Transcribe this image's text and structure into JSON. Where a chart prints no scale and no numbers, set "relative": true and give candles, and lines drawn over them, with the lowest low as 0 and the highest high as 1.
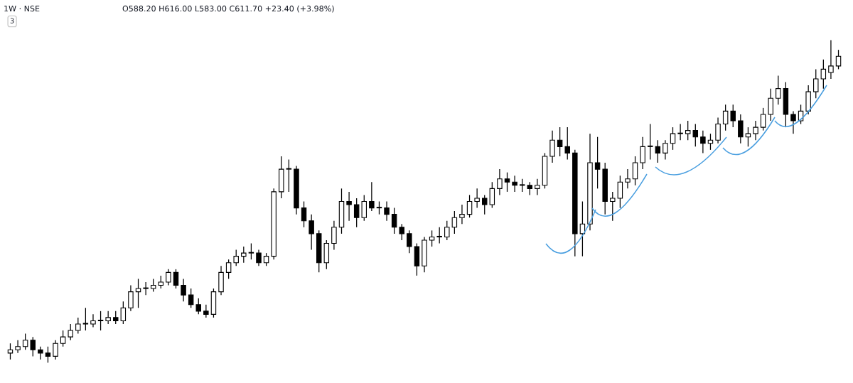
{
  "chart_data": {
    "type": "candlestick",
    "title": "1W · NSE",
    "relative": true,
    "annotations": [
      "O588.20 H616.00 L583.00 C611.70 +23.40 (+3.98%)",
      "3"
    ],
    "categories": [
      null,
      null,
      null,
      null,
      null,
      null,
      null,
      null,
      null,
      null,
      null,
      null,
      null,
      null,
      null,
      null,
      null,
      null,
      null,
      null,
      null,
      null,
      null,
      null,
      null,
      null,
      null,
      null,
      null,
      null,
      null,
      null,
      null,
      null,
      null,
      null,
      null,
      null,
      null,
      null,
      null,
      null,
      null,
      null,
      null,
      null,
      null,
      null,
      null,
      null,
      null,
      null,
      null,
      null,
      null,
      null,
      null,
      null,
      null,
      null,
      null,
      null,
      null,
      null,
      null,
      null,
      null,
      null,
      null,
      null,
      null,
      null,
      null,
      null,
      null,
      null,
      null,
      null,
      null,
      null,
      null,
      null,
      null,
      null,
      null,
      null,
      null,
      null,
      null,
      null,
      null,
      null,
      null,
      null,
      null,
      null,
      null,
      null,
      null,
      null,
      null,
      null,
      null,
      null,
      null,
      null,
      null,
      null,
      null,
      null,
      null
    ],
    "ohlc": [
      [
        0.03,
        0.06,
        0.01,
        0.04
      ],
      [
        0.04,
        0.07,
        0.03,
        0.05
      ],
      [
        0.05,
        0.09,
        0.04,
        0.07
      ],
      [
        0.07,
        0.08,
        0.02,
        0.04
      ],
      [
        0.04,
        0.05,
        0.01,
        0.03
      ],
      [
        0.03,
        0.05,
        0,
        0.02
      ],
      [
        0.02,
        0.07,
        0.01,
        0.06
      ],
      [
        0.06,
        0.1,
        0.05,
        0.08
      ],
      [
        0.08,
        0.12,
        0.07,
        0.1
      ],
      [
        0.1,
        0.14,
        0.09,
        0.12
      ],
      [
        0.12,
        0.17,
        0.1,
        0.12
      ],
      [
        0.12,
        0.15,
        0.11,
        0.13
      ],
      [
        0.13,
        0.16,
        0.1,
        0.13
      ],
      [
        0.13,
        0.16,
        0.12,
        0.14
      ],
      [
        0.14,
        0.16,
        0.12,
        0.13
      ],
      [
        0.13,
        0.19,
        0.12,
        0.17
      ],
      [
        0.17,
        0.24,
        0.16,
        0.22
      ],
      [
        0.22,
        0.26,
        0.17,
        0.23
      ],
      [
        0.23,
        0.25,
        0.21,
        0.23
      ],
      [
        0.23,
        0.26,
        0.22,
        0.24
      ],
      [
        0.24,
        0.27,
        0.23,
        0.25
      ],
      [
        0.25,
        0.29,
        0.24,
        0.28
      ],
      [
        0.28,
        0.29,
        0.23,
        0.24
      ],
      [
        0.24,
        0.26,
        0.19,
        0.21
      ],
      [
        0.21,
        0.23,
        0.17,
        0.18
      ],
      [
        0.18,
        0.2,
        0.15,
        0.16
      ],
      [
        0.16,
        0.18,
        0.14,
        0.15
      ],
      [
        0.15,
        0.23,
        0.14,
        0.22
      ],
      [
        0.22,
        0.3,
        0.21,
        0.28
      ],
      [
        0.28,
        0.32,
        0.26,
        0.31
      ],
      [
        0.31,
        0.35,
        0.3,
        0.33
      ],
      [
        0.33,
        0.36,
        0.31,
        0.34
      ],
      [
        0.34,
        0.37,
        0.32,
        0.34
      ],
      [
        0.34,
        0.35,
        0.3,
        0.31
      ],
      [
        0.31,
        0.34,
        0.3,
        0.33
      ],
      [
        0.33,
        0.54,
        0.32,
        0.53
      ],
      [
        0.53,
        0.64,
        0.51,
        0.6
      ],
      [
        0.6,
        0.63,
        0.53,
        0.6
      ],
      [
        0.6,
        0.61,
        0.46,
        0.48
      ],
      [
        0.48,
        0.5,
        0.42,
        0.44
      ],
      [
        0.44,
        0.46,
        0.35,
        0.4
      ],
      [
        0.4,
        0.41,
        0.28,
        0.31
      ],
      [
        0.31,
        0.38,
        0.29,
        0.37
      ],
      [
        0.37,
        0.44,
        0.35,
        0.42
      ],
      [
        0.42,
        0.54,
        0.4,
        0.5
      ],
      [
        0.5,
        0.53,
        0.44,
        0.49
      ],
      [
        0.49,
        0.51,
        0.42,
        0.45
      ],
      [
        0.45,
        0.52,
        0.44,
        0.5
      ],
      [
        0.5,
        0.56,
        0.47,
        0.48
      ],
      [
        0.48,
        0.5,
        0.46,
        0.48
      ],
      [
        0.48,
        0.5,
        0.44,
        0.46
      ],
      [
        0.46,
        0.48,
        0.4,
        0.42
      ],
      [
        0.42,
        0.43,
        0.38,
        0.4
      ],
      [
        0.4,
        0.41,
        0.34,
        0.36
      ],
      [
        0.36,
        0.37,
        0.27,
        0.3
      ],
      [
        0.3,
        0.39,
        0.28,
        0.38
      ],
      [
        0.38,
        0.41,
        0.36,
        0.39
      ],
      [
        0.39,
        0.42,
        0.37,
        0.39
      ],
      [
        0.39,
        0.44,
        0.38,
        0.42
      ],
      [
        0.42,
        0.47,
        0.4,
        0.45
      ],
      [
        0.45,
        0.49,
        0.43,
        0.46
      ],
      [
        0.46,
        0.52,
        0.45,
        0.5
      ],
      [
        0.5,
        0.54,
        0.48,
        0.51
      ],
      [
        0.51,
        0.52,
        0.46,
        0.49
      ],
      [
        0.49,
        0.56,
        0.48,
        0.54
      ],
      [
        0.54,
        0.6,
        0.52,
        0.57
      ],
      [
        0.57,
        0.59,
        0.53,
        0.56
      ],
      [
        0.56,
        0.58,
        0.53,
        0.55
      ],
      [
        0.55,
        0.57,
        0.53,
        0.55
      ],
      [
        0.55,
        0.56,
        0.52,
        0.54
      ],
      [
        0.54,
        0.57,
        0.52,
        0.55
      ],
      [
        0.55,
        0.65,
        0.54,
        0.64
      ],
      [
        0.64,
        0.72,
        0.62,
        0.69
      ],
      [
        0.69,
        0.73,
        0.64,
        0.67
      ],
      [
        0.67,
        0.73,
        0.63,
        0.65
      ],
      [
        0.65,
        0.66,
        0.33,
        0.4
      ],
      [
        0.4,
        0.5,
        0.33,
        0.43
      ],
      [
        0.43,
        0.71,
        0.41,
        0.62
      ],
      [
        0.62,
        0.7,
        0.54,
        0.6
      ],
      [
        0.6,
        0.62,
        0.46,
        0.5
      ],
      [
        0.5,
        0.53,
        0.44,
        0.51
      ],
      [
        0.51,
        0.58,
        0.48,
        0.56
      ],
      [
        0.56,
        0.6,
        0.54,
        0.57
      ],
      [
        0.57,
        0.64,
        0.55,
        0.62
      ],
      [
        0.62,
        0.7,
        0.6,
        0.67
      ],
      [
        0.67,
        0.74,
        0.63,
        0.67
      ],
      [
        0.67,
        0.69,
        0.62,
        0.65
      ],
      [
        0.65,
        0.69,
        0.63,
        0.68
      ],
      [
        0.68,
        0.73,
        0.66,
        0.71
      ],
      [
        0.71,
        0.74,
        0.69,
        0.71
      ],
      [
        0.71,
        0.75,
        0.69,
        0.72
      ],
      [
        0.72,
        0.74,
        0.67,
        0.7
      ],
      [
        0.7,
        0.72,
        0.65,
        0.68
      ],
      [
        0.68,
        0.71,
        0.66,
        0.69
      ],
      [
        0.69,
        0.76,
        0.68,
        0.74
      ],
      [
        0.74,
        0.8,
        0.72,
        0.78
      ],
      [
        0.78,
        0.8,
        0.73,
        0.75
      ],
      [
        0.75,
        0.77,
        0.68,
        0.7
      ],
      [
        0.7,
        0.73,
        0.67,
        0.71
      ],
      [
        0.71,
        0.75,
        0.69,
        0.73
      ],
      [
        0.73,
        0.79,
        0.72,
        0.77
      ],
      [
        0.77,
        0.85,
        0.75,
        0.82
      ],
      [
        0.82,
        0.89,
        0.8,
        0.85
      ],
      [
        0.85,
        0.87,
        0.73,
        0.77
      ],
      [
        0.77,
        0.78,
        0.71,
        0.75
      ],
      [
        0.75,
        0.8,
        0.74,
        0.78
      ],
      [
        0.78,
        0.86,
        0.77,
        0.84
      ],
      [
        0.84,
        0.91,
        0.82,
        0.88
      ],
      [
        0.88,
        0.94,
        0.85,
        0.91
      ],
      [
        0.9,
        1.0,
        0.88,
        0.92
      ],
      [
        0.92,
        0.97,
        0.91,
        0.95
      ]
    ]
  }
}
